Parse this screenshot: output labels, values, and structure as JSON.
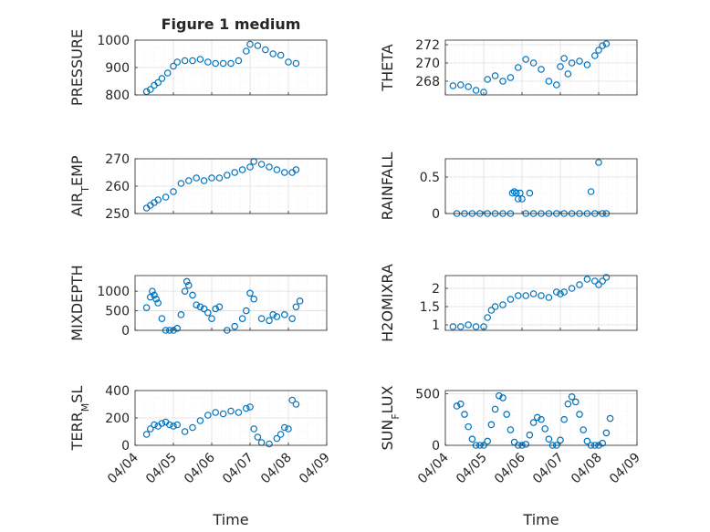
{
  "figure": {
    "title": "Figure 1 medium",
    "xlabel": "Time",
    "marker_color": "#0072BD",
    "axis_color": "#262626",
    "grid_color": "#DFDFDF"
  },
  "chart_data": [
    {
      "type": "scatter",
      "id": "pressure",
      "title": "Figure 1 medium",
      "ylabel": "PRESSURE",
      "xlabel": "",
      "x_ticks": [
        "04/04",
        "04/05",
        "04/06",
        "04/07",
        "04/08",
        "04/09"
      ],
      "xlim": [
        0,
        5
      ],
      "ylim": [
        800,
        1000
      ],
      "yticks": [
        800,
        900,
        1000
      ],
      "grid": true,
      "series": [
        {
          "x": [
            0.3,
            0.4,
            0.5,
            0.6,
            0.7,
            0.85,
            1.0,
            1.1,
            1.3,
            1.5,
            1.7,
            1.9,
            2.1,
            2.3,
            2.5,
            2.7,
            2.9,
            3.0,
            3.2,
            3.4,
            3.6,
            3.8,
            4.0,
            4.2
          ],
          "y": [
            812,
            820,
            835,
            845,
            860,
            880,
            905,
            920,
            925,
            925,
            930,
            920,
            915,
            915,
            915,
            925,
            960,
            985,
            980,
            965,
            950,
            945,
            920,
            915
          ]
        }
      ]
    },
    {
      "type": "scatter",
      "id": "theta",
      "title": "",
      "ylabel": "THETA",
      "xlabel": "",
      "x_ticks": [
        "04/04",
        "04/05",
        "04/06",
        "04/07",
        "04/08",
        "04/09"
      ],
      "xlim": [
        0,
        5
      ],
      "ylim": [
        266.5,
        272.5
      ],
      "yticks": [
        268,
        270,
        272
      ],
      "grid": true,
      "series": [
        {
          "x": [
            0.2,
            0.4,
            0.6,
            0.8,
            1.0,
            1.1,
            1.3,
            1.5,
            1.7,
            1.9,
            2.1,
            2.3,
            2.5,
            2.7,
            2.9,
            3.0,
            3.1,
            3.2,
            3.3,
            3.5,
            3.7,
            3.9,
            4.0,
            4.1,
            4.2
          ],
          "y": [
            267.5,
            267.6,
            267.4,
            267.0,
            266.8,
            268.2,
            268.6,
            268.0,
            268.4,
            269.5,
            270.4,
            270.0,
            269.3,
            268.0,
            267.6,
            269.6,
            270.5,
            268.8,
            270.0,
            270.2,
            269.8,
            270.8,
            271.4,
            271.9,
            272.1
          ]
        }
      ]
    },
    {
      "type": "scatter",
      "id": "air_temp",
      "title": "",
      "ylabel": "AIR",
      "ylabel_sub": "T",
      "ylabel_rest": "EMP",
      "xlabel": "",
      "x_ticks": [
        "04/04",
        "04/05",
        "04/06",
        "04/07",
        "04/08",
        "04/09"
      ],
      "xlim": [
        0,
        5
      ],
      "ylim": [
        250,
        270
      ],
      "yticks": [
        250,
        260,
        270
      ],
      "grid": true,
      "series": [
        {
          "x": [
            0.3,
            0.4,
            0.5,
            0.6,
            0.8,
            1.0,
            1.2,
            1.4,
            1.6,
            1.8,
            2.0,
            2.2,
            2.4,
            2.6,
            2.8,
            3.0,
            3.1,
            3.3,
            3.5,
            3.7,
            3.9,
            4.1,
            4.2
          ],
          "y": [
            252,
            253,
            254,
            255,
            256,
            258,
            261,
            262,
            263,
            262,
            263,
            263,
            264,
            265,
            266,
            267,
            269,
            268,
            267,
            266,
            265,
            265,
            266
          ]
        }
      ]
    },
    {
      "type": "scatter",
      "id": "rainfall",
      "title": "",
      "ylabel": "RAINFALL",
      "xlabel": "",
      "x_ticks": [
        "04/04",
        "04/05",
        "04/06",
        "04/07",
        "04/08",
        "04/09"
      ],
      "xlim": [
        0,
        5
      ],
      "ylim": [
        0,
        0.75
      ],
      "yticks": [
        0,
        0.5
      ],
      "grid": true,
      "series": [
        {
          "x": [
            0.3,
            0.5,
            0.7,
            0.9,
            1.1,
            1.3,
            1.5,
            1.7,
            1.75,
            1.8,
            1.85,
            1.9,
            1.95,
            2.0,
            2.1,
            2.2,
            2.3,
            2.5,
            2.7,
            2.9,
            3.1,
            3.3,
            3.5,
            3.7,
            3.8,
            3.9,
            4.0,
            4.1,
            4.2
          ],
          "y": [
            0,
            0,
            0,
            0,
            0,
            0,
            0,
            0,
            0.28,
            0.3,
            0.28,
            0.2,
            0.28,
            0.2,
            0,
            0.28,
            0,
            0,
            0,
            0,
            0,
            0,
            0,
            0,
            0.3,
            0,
            0.7,
            0,
            0
          ]
        }
      ]
    },
    {
      "type": "scatter",
      "id": "mixdepth",
      "title": "",
      "ylabel": "MIXDEPTH",
      "xlabel": "",
      "x_ticks": [
        "04/04",
        "04/05",
        "04/06",
        "04/07",
        "04/08",
        "04/09"
      ],
      "xlim": [
        0,
        5
      ],
      "ylim": [
        0,
        1400
      ],
      "yticks": [
        0,
        500,
        1000
      ],
      "grid": true,
      "series": [
        {
          "x": [
            0.3,
            0.4,
            0.45,
            0.5,
            0.55,
            0.6,
            0.7,
            0.8,
            0.9,
            1.0,
            1.1,
            1.2,
            1.3,
            1.35,
            1.4,
            1.5,
            1.6,
            1.7,
            1.8,
            1.9,
            2.0,
            2.1,
            2.2,
            2.4,
            2.6,
            2.8,
            2.9,
            3.0,
            3.1,
            3.3,
            3.5,
            3.6,
            3.7,
            3.9,
            4.1,
            4.2,
            4.3
          ],
          "y": [
            580,
            850,
            1000,
            900,
            800,
            700,
            300,
            0,
            0,
            0,
            50,
            400,
            1000,
            1250,
            1150,
            900,
            650,
            600,
            550,
            450,
            300,
            550,
            600,
            0,
            100,
            300,
            500,
            950,
            800,
            300,
            250,
            400,
            350,
            400,
            300,
            600,
            750
          ]
        }
      ]
    },
    {
      "type": "scatter",
      "id": "h2omixra",
      "title": "",
      "ylabel": "H2OMIXRA",
      "xlabel": "",
      "x_ticks": [
        "04/04",
        "04/05",
        "04/06",
        "04/07",
        "04/08",
        "04/09"
      ],
      "xlim": [
        0,
        5
      ],
      "ylim": [
        0.85,
        2.35
      ],
      "yticks": [
        1,
        1.5,
        2
      ],
      "grid": true,
      "series": [
        {
          "x": [
            0.2,
            0.4,
            0.6,
            0.8,
            1.0,
            1.1,
            1.2,
            1.3,
            1.5,
            1.7,
            1.9,
            2.1,
            2.3,
            2.5,
            2.7,
            2.9,
            3.0,
            3.1,
            3.3,
            3.5,
            3.7,
            3.9,
            4.0,
            4.1,
            4.2
          ],
          "y": [
            0.95,
            0.95,
            1.0,
            0.95,
            0.95,
            1.2,
            1.4,
            1.5,
            1.55,
            1.7,
            1.8,
            1.8,
            1.85,
            1.8,
            1.75,
            1.9,
            1.85,
            1.9,
            2.0,
            2.1,
            2.25,
            2.2,
            2.1,
            2.2,
            2.3
          ]
        }
      ]
    },
    {
      "type": "scatter",
      "id": "terr_msl",
      "title": "",
      "ylabel": "TERR",
      "ylabel_sub": "M",
      "ylabel_rest": "SL",
      "xlabel": "Time",
      "x_ticks": [
        "04/04",
        "04/05",
        "04/06",
        "04/07",
        "04/08",
        "04/09"
      ],
      "xlim": [
        0,
        5
      ],
      "ylim": [
        0,
        400
      ],
      "yticks": [
        0,
        200,
        400
      ],
      "grid": true,
      "series": [
        {
          "x": [
            0.3,
            0.4,
            0.5,
            0.6,
            0.7,
            0.8,
            0.9,
            1.0,
            1.1,
            1.3,
            1.5,
            1.7,
            1.9,
            2.1,
            2.3,
            2.5,
            2.7,
            2.9,
            3.0,
            3.1,
            3.2,
            3.3,
            3.5,
            3.7,
            3.8,
            3.9,
            4.0,
            4.1,
            4.2
          ],
          "y": [
            80,
            120,
            150,
            140,
            160,
            170,
            150,
            140,
            150,
            100,
            130,
            180,
            220,
            240,
            230,
            250,
            240,
            270,
            280,
            120,
            60,
            20,
            10,
            50,
            80,
            130,
            120,
            330,
            300
          ]
        }
      ]
    },
    {
      "type": "scatter",
      "id": "sun_flux",
      "title": "",
      "ylabel": "SUN",
      "ylabel_sub": "F",
      "ylabel_rest": "LUX",
      "xlabel": "Time",
      "x_ticks": [
        "04/04",
        "04/05",
        "04/06",
        "04/07",
        "04/08",
        "04/09"
      ],
      "xlim": [
        0,
        5
      ],
      "ylim": [
        0,
        530
      ],
      "yticks": [
        0,
        500
      ],
      "grid": true,
      "series": [
        {
          "x": [
            0.3,
            0.4,
            0.5,
            0.6,
            0.7,
            0.8,
            0.9,
            1.0,
            1.1,
            1.2,
            1.3,
            1.4,
            1.5,
            1.6,
            1.7,
            1.8,
            1.9,
            2.0,
            2.1,
            2.2,
            2.3,
            2.4,
            2.5,
            2.6,
            2.7,
            2.8,
            2.9,
            3.0,
            3.1,
            3.2,
            3.3,
            3.4,
            3.5,
            3.6,
            3.7,
            3.8,
            3.9,
            4.0,
            4.1,
            4.2,
            4.3
          ],
          "y": [
            380,
            400,
            300,
            180,
            60,
            0,
            0,
            0,
            40,
            200,
            350,
            480,
            460,
            300,
            150,
            30,
            0,
            0,
            10,
            100,
            220,
            270,
            250,
            160,
            60,
            0,
            0,
            50,
            250,
            400,
            470,
            420,
            300,
            150,
            40,
            0,
            0,
            0,
            20,
            120,
            260
          ]
        }
      ]
    }
  ]
}
